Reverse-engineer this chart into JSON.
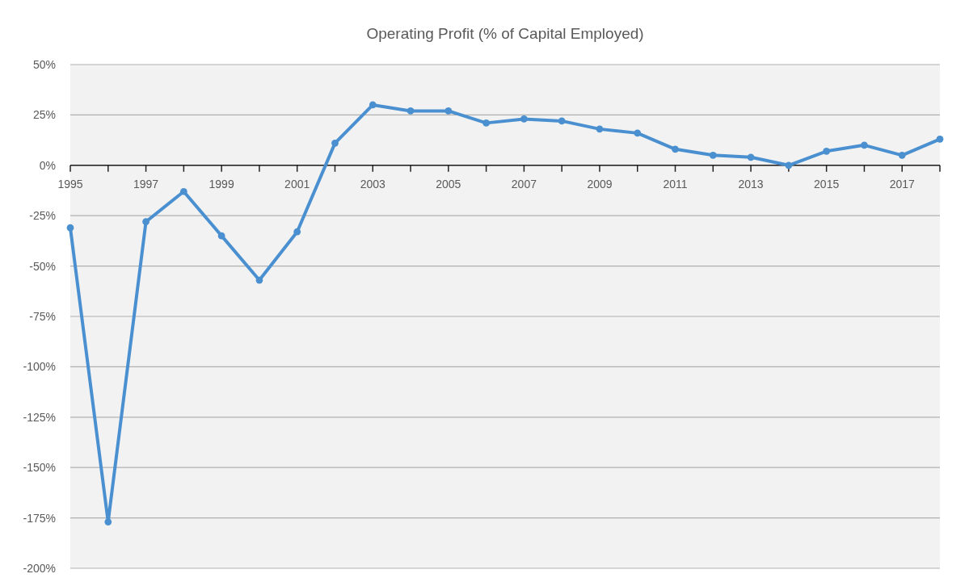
{
  "chart_data": {
    "type": "line",
    "title": "Operating Profit (% of Capital Employed)",
    "x": [
      1995,
      1996,
      1997,
      1998,
      1999,
      2000,
      2001,
      2002,
      2003,
      2004,
      2005,
      2006,
      2007,
      2008,
      2009,
      2010,
      2011,
      2012,
      2013,
      2014,
      2015,
      2016,
      2017,
      2018
    ],
    "series": [
      {
        "color": "#4a90d0",
        "values": [
          -31,
          -177,
          -28,
          -13,
          -35,
          -57,
          -33,
          11,
          30,
          27,
          27,
          21,
          23,
          22,
          18,
          16,
          8,
          5,
          4,
          0,
          7,
          10,
          5,
          13
        ]
      }
    ],
    "xlim": [
      1995,
      2018
    ],
    "xticks": [
      1995,
      {
        "value": 1996,
        "label": null
      },
      1997,
      {
        "value": 1998,
        "label": null
      },
      1999,
      {
        "value": 2000,
        "label": null
      },
      2001,
      {
        "value": 2002,
        "label": null
      },
      2003,
      {
        "value": 2004,
        "label": null
      },
      2005,
      {
        "value": 2006,
        "label": null
      },
      2007,
      {
        "value": 2008,
        "label": null
      },
      2009,
      {
        "value": 2010,
        "label": null
      },
      2011,
      {
        "value": 2012,
        "label": null
      },
      2013,
      {
        "value": 2014,
        "label": null
      },
      2015,
      {
        "value": 2016,
        "label": null
      },
      2017,
      {
        "value": 2018,
        "label": null
      }
    ],
    "ylim": [
      -200,
      50
    ],
    "yticks": [
      {
        "value": 50,
        "label": "50%"
      },
      {
        "value": 25,
        "label": "25%"
      },
      {
        "value": 0,
        "label": "0%"
      },
      {
        "value": -25,
        "label": "-25%"
      },
      {
        "value": -50,
        "label": "-50%"
      },
      {
        "value": -75,
        "label": "-75%"
      },
      {
        "value": -100,
        "label": "-100%"
      },
      {
        "value": -125,
        "label": "-125%"
      },
      {
        "value": -150,
        "label": "-150%"
      },
      {
        "value": -175,
        "label": "-175%"
      },
      {
        "value": -200,
        "label": "-200%"
      }
    ],
    "grid": "y",
    "marker": "circle",
    "line_style": "solid"
  }
}
